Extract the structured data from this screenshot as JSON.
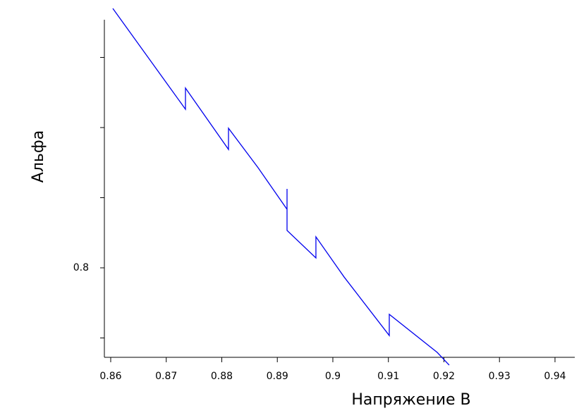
{
  "chart_data": {
    "type": "line",
    "x_label": "Напряжение В",
    "y_label": "Альфа",
    "series": [
      {
        "color": "#0000ee",
        "x": [
          0.86038,
          0.87346,
          0.87346,
          0.88121,
          0.88121,
          0.88654,
          0.89175,
          0.89175,
          0.89175,
          0.89695,
          0.89695,
          0.90203,
          0.91016,
          0.91016,
          0.91879,
          0.92095
        ],
        "values": [
          0.83698,
          0.82261,
          0.82563,
          0.81688,
          0.8199,
          0.81427,
          0.80834,
          0.81126,
          0.80533,
          0.80141,
          0.80442,
          0.79869,
          0.79035,
          0.79337,
          0.78794,
          0.78613
        ]
      }
    ],
    "xlim": [
      0.85886,
      0.94356
    ],
    "xticks": [
      0.86,
      0.87,
      0.88,
      0.89,
      0.9,
      0.91,
      0.92,
      0.93,
      0.94
    ],
    "ylim": [
      0.78724,
      0.83698
    ],
    "yticks": [
      0.8
    ],
    "yminor_ticks": [
      0.79,
      0.81,
      0.82,
      0.83
    ]
  }
}
